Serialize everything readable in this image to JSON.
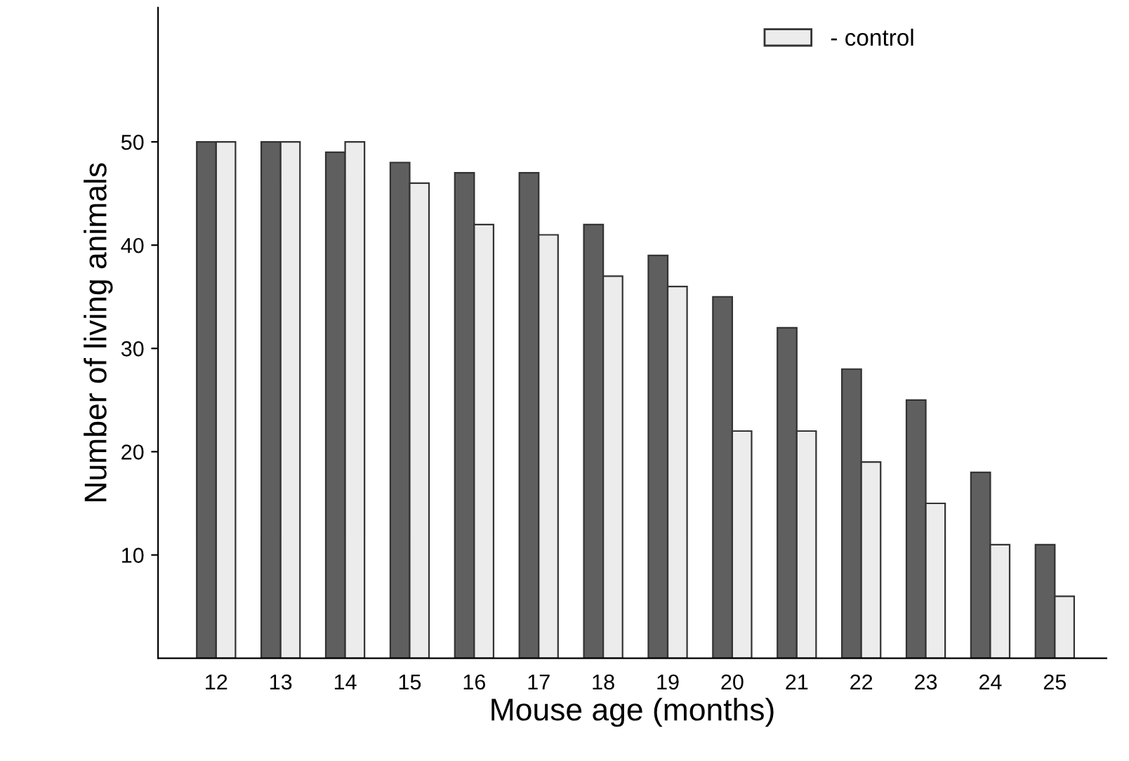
{
  "chart_data": {
    "type": "bar",
    "xlabel": "Mouse age (months)",
    "ylabel": "Number of living animals",
    "categories": [
      "12",
      "13",
      "14",
      "15",
      "16",
      "17",
      "18",
      "19",
      "20",
      "21",
      "22",
      "23",
      "24",
      "25"
    ],
    "series": [
      {
        "color": "#5f5f5f",
        "values": [
          50,
          50,
          49,
          48,
          47,
          47,
          42,
          39,
          35,
          32,
          28,
          25,
          18,
          11
        ]
      },
      {
        "name": "- control",
        "color": "#ececec",
        "values": [
          50,
          50,
          50,
          46,
          42,
          41,
          37,
          36,
          22,
          22,
          19,
          15,
          11,
          6
        ]
      }
    ],
    "ylim": [
      0,
      63
    ],
    "yticks": [
      10,
      20,
      30,
      40,
      50
    ],
    "grid": false,
    "legend": "top right"
  }
}
